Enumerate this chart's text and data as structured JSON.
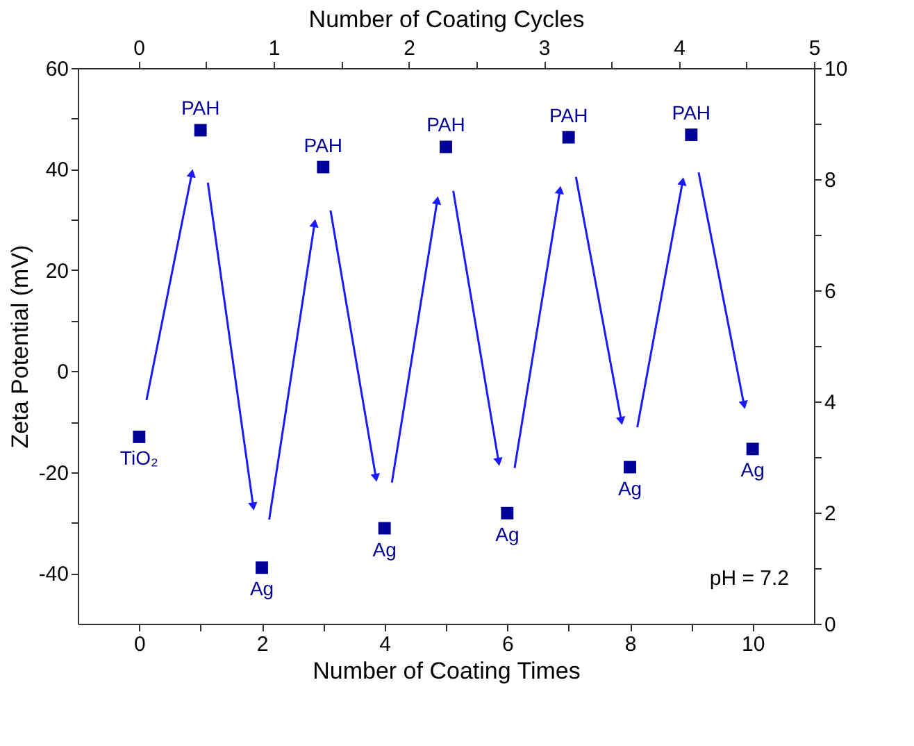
{
  "chart_data": {
    "type": "scatter",
    "xlabel": "Number of Coating Times",
    "x2label": "Number of Coating Cycles",
    "ylabel": "Zeta Potential (mV)",
    "x": [
      0,
      1,
      2,
      3,
      4,
      5,
      6,
      7,
      8,
      9,
      10
    ],
    "series": [
      {
        "color": "#000099",
        "values": [
          -13,
          47.7,
          -38.9,
          40.4,
          -31.1,
          44.4,
          -28.1,
          46.3,
          -19,
          46.8,
          -15.4
        ]
      }
    ],
    "marker": "square",
    "grid": false,
    "legend": false,
    "xlim": [
      -1,
      11
    ],
    "xticks": [
      0,
      {
        "value": 1,
        "label": null
      },
      2,
      {
        "value": 3,
        "label": null
      },
      4,
      {
        "value": 5,
        "label": null
      },
      6,
      {
        "value": 7,
        "label": null
      },
      8,
      {
        "value": 9,
        "label": null
      },
      10
    ],
    "x2lim": [
      -0.45,
      5
    ],
    "x2ticks": [
      0,
      {
        "value": 0.5,
        "label": null
      },
      1,
      {
        "value": 1.5,
        "label": null
      },
      2,
      {
        "value": 2.5,
        "label": null
      },
      3,
      {
        "value": 3.5,
        "label": null
      },
      4,
      {
        "value": 4.5,
        "label": null
      },
      5
    ],
    "ylim": [
      -50,
      60
    ],
    "yticks": [
      -40,
      {
        "value": -30,
        "label": null
      },
      -20,
      {
        "value": -10,
        "label": null
      },
      0,
      {
        "value": 10,
        "label": null
      },
      20,
      {
        "value": 30,
        "label": null
      },
      40,
      {
        "value": 50,
        "label": null
      },
      60
    ],
    "y2lim": [
      0,
      10
    ],
    "y2ticks": [
      0,
      {
        "value": 1,
        "label": null
      },
      2,
      {
        "value": 3,
        "label": null
      },
      4,
      {
        "value": 5,
        "label": null
      },
      6,
      {
        "value": 7,
        "label": null
      },
      8,
      {
        "value": 9,
        "label": null
      },
      10
    ],
    "annotations": [
      {
        "text": "TiO₂",
        "x": 0,
        "y": -13
      },
      {
        "text": "PAH",
        "x": 1,
        "y": 47.7
      },
      {
        "text": "Ag",
        "x": 2,
        "y": -38.9
      },
      {
        "text": "PAH",
        "x": 3,
        "y": 40.4
      },
      {
        "text": "Ag",
        "x": 4,
        "y": -31.1
      },
      {
        "text": "PAH",
        "x": 5,
        "y": 44.4
      },
      {
        "text": "Ag",
        "x": 6,
        "y": -28.1
      },
      {
        "text": "PAH",
        "x": 7,
        "y": 46.3
      },
      {
        "text": "Ag",
        "x": 8,
        "y": -19
      },
      {
        "text": "PAH",
        "x": 9,
        "y": 46.8
      },
      {
        "text": "Ag",
        "x": 10,
        "y": -15.4
      },
      "pH = 7.2"
    ]
  }
}
